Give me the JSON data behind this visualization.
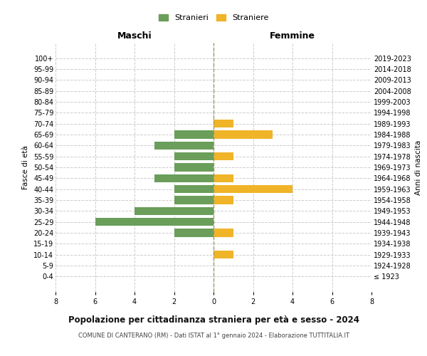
{
  "age_groups": [
    "100+",
    "95-99",
    "90-94",
    "85-89",
    "80-84",
    "75-79",
    "70-74",
    "65-69",
    "60-64",
    "55-59",
    "50-54",
    "45-49",
    "40-44",
    "35-39",
    "30-34",
    "25-29",
    "20-24",
    "15-19",
    "10-14",
    "5-9",
    "0-4"
  ],
  "birth_years": [
    "≤ 1923",
    "1924-1928",
    "1929-1933",
    "1934-1938",
    "1939-1943",
    "1944-1948",
    "1949-1953",
    "1954-1958",
    "1959-1963",
    "1964-1968",
    "1969-1973",
    "1974-1978",
    "1979-1983",
    "1984-1988",
    "1989-1993",
    "1994-1998",
    "1999-2003",
    "2004-2008",
    "2009-2013",
    "2014-2018",
    "2019-2023"
  ],
  "maschi": [
    0,
    0,
    0,
    0,
    0,
    0,
    0,
    2,
    3,
    2,
    2,
    3,
    2,
    2,
    4,
    6,
    2,
    0,
    0,
    0,
    0
  ],
  "femmine": [
    0,
    0,
    0,
    0,
    0,
    0,
    1,
    3,
    0,
    1,
    0,
    1,
    4,
    1,
    0,
    0,
    1,
    0,
    1,
    0,
    0
  ],
  "maschi_color": "#6a9e5a",
  "femmine_color": "#f0b429",
  "grid_color": "#cccccc",
  "center_line_color": "#999966",
  "bg_color": "#ffffff",
  "title": "Popolazione per cittadinanza straniera per età e sesso - 2024",
  "subtitle": "COMUNE DI CANTERANO (RM) - Dati ISTAT al 1° gennaio 2024 - Elaborazione TUTTITALIA.IT",
  "left_label": "Maschi",
  "right_label": "Femmine",
  "y_label": "Fasce di età",
  "right_y_label": "Anni di nascita",
  "legend_maschi": "Stranieri",
  "legend_femmine": "Straniere",
  "xlim": 8,
  "bar_height": 0.75
}
